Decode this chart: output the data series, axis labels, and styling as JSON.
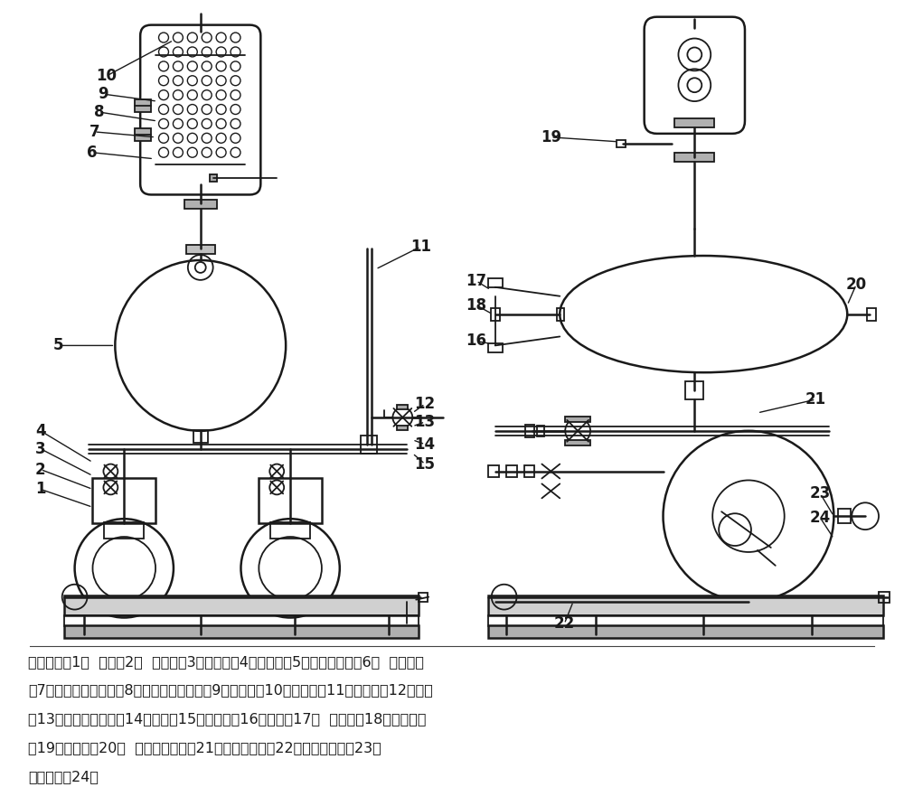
{
  "background_color": "#ffffff",
  "line_color": "#1a1a1a",
  "legend_lines": [
    "回收泵体（1）  泵盖（2）  进气管（3）乏气管（4）集水箱（5）乏汽冷却器（6）  冷却铜管",
    "（7）循环冷却水出口（8）循环冷却水进口（9）乏汽口（10）乏汽管（11）过滤器（12）球阀",
    "（13）驱动介质进口（14）球阀（15）过滤器（16）球阀（17）  液位计（18）凝液进口",
    "（19）溢流口（20）  机械联动机构（21）进口止回阀（22）出口止回阀（23）",
    "凝液出口（24）"
  ],
  "fig_width": 10.0,
  "fig_height": 8.92,
  "dpi": 100
}
